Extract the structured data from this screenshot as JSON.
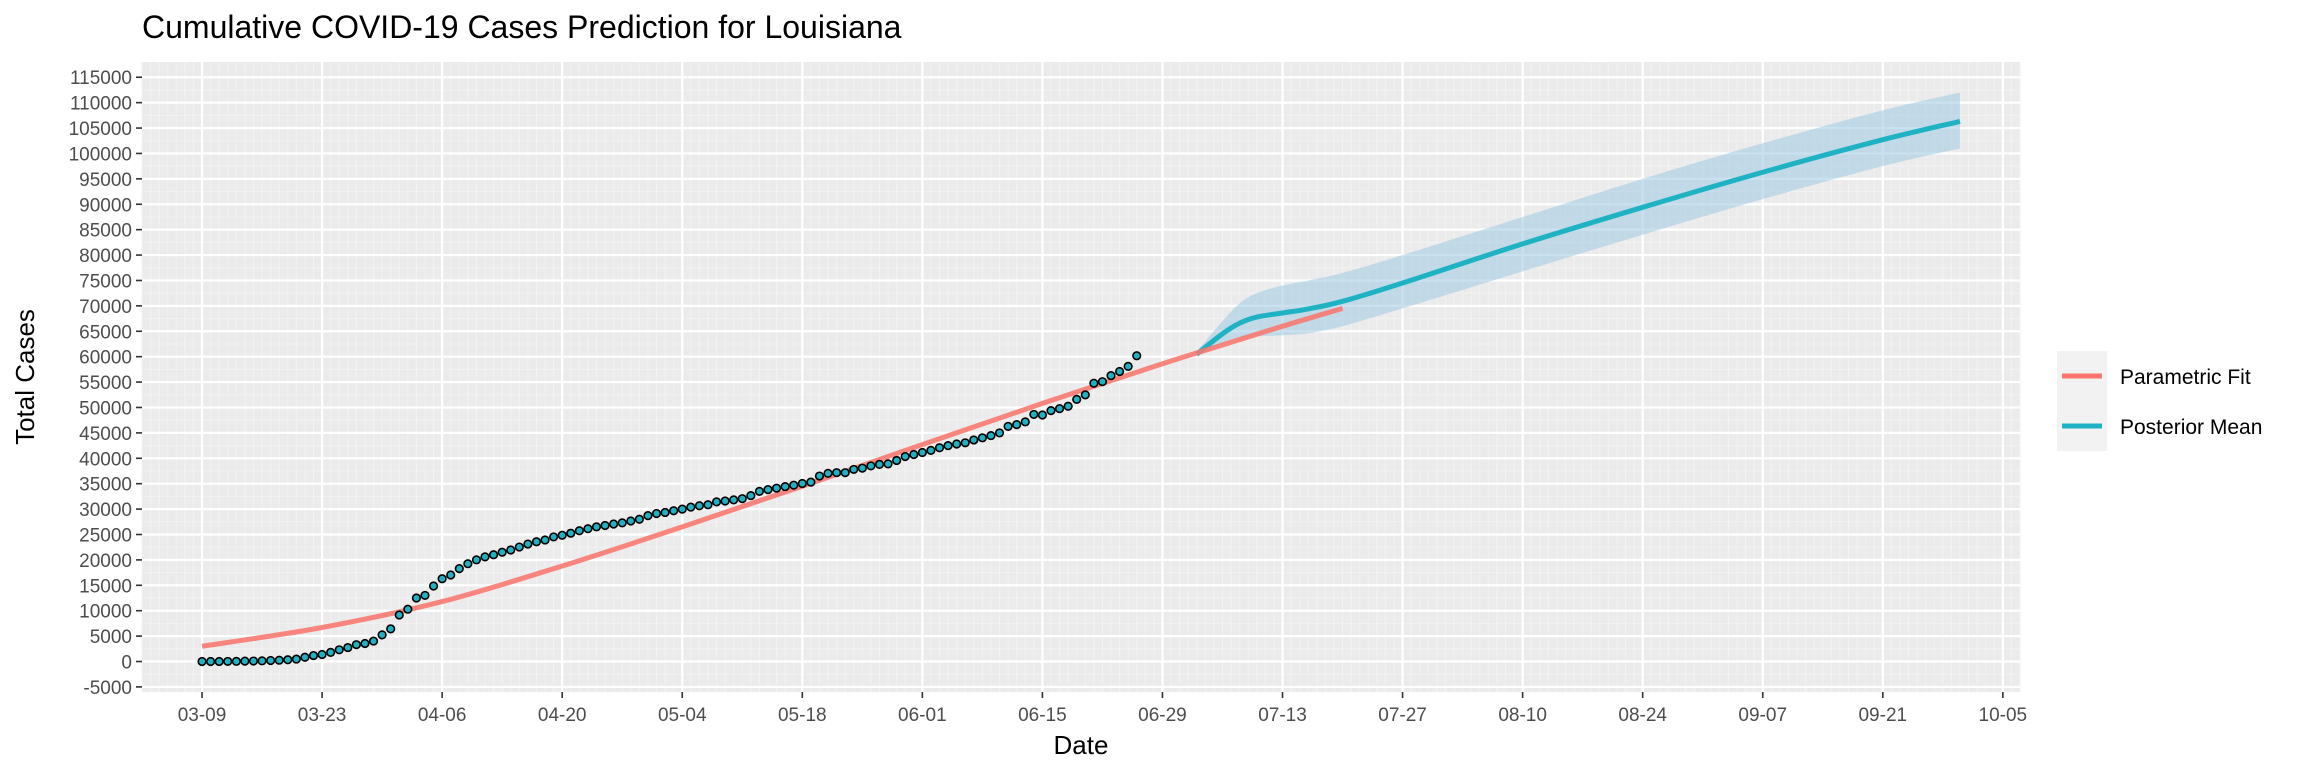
{
  "chart_data": {
    "type": "line",
    "title": "Cumulative COVID-19 Cases Prediction for Louisiana",
    "xlabel": "Date",
    "ylabel": "Total Cases",
    "x_axis": {
      "type": "date",
      "year": 2020,
      "range": [
        "2020-03-02",
        "2020-10-07"
      ],
      "tick_dates": [
        "2020-03-09",
        "2020-03-23",
        "2020-04-06",
        "2020-04-20",
        "2020-05-04",
        "2020-05-18",
        "2020-06-01",
        "2020-06-15",
        "2020-06-29",
        "2020-07-13",
        "2020-07-27",
        "2020-08-10",
        "2020-08-24",
        "2020-09-07",
        "2020-09-21",
        "2020-10-05"
      ],
      "tick_labels": [
        "03-09",
        "03-23",
        "04-06",
        "04-20",
        "05-04",
        "05-18",
        "06-01",
        "06-15",
        "06-29",
        "07-13",
        "07-27",
        "08-10",
        "08-24",
        "09-07",
        "09-21",
        "10-05"
      ]
    },
    "y_axis": {
      "range": [
        -6000,
        118000
      ],
      "tick_values": [
        -5000,
        0,
        5000,
        10000,
        15000,
        20000,
        25000,
        30000,
        35000,
        40000,
        45000,
        50000,
        55000,
        60000,
        65000,
        70000,
        75000,
        80000,
        85000,
        90000,
        95000,
        100000,
        105000,
        110000,
        115000
      ],
      "tick_labels": [
        "-5000",
        "0",
        "5000",
        "10000",
        "15000",
        "20000",
        "25000",
        "30000",
        "35000",
        "40000",
        "45000",
        "50000",
        "55000",
        "60000",
        "65000",
        "70000",
        "75000",
        "80000",
        "85000",
        "90000",
        "95000",
        "100000",
        "105000",
        "110000",
        "115000"
      ]
    },
    "grid": true,
    "legend_position": "right",
    "series": [
      {
        "name": "Parametric Fit",
        "color": "#F8766D",
        "style": "line",
        "x": [
          "2020-03-09",
          "2020-03-23",
          "2020-04-06",
          "2020-04-20",
          "2020-05-04",
          "2020-05-18",
          "2020-06-01",
          "2020-06-15",
          "2020-06-29",
          "2020-07-06",
          "2020-07-13",
          "2020-07-20"
        ],
        "y": [
          3000,
          6700,
          11800,
          18800,
          26500,
          34500,
          42700,
          50800,
          58600,
          62300,
          66000,
          69500
        ]
      },
      {
        "name": "Posterior Mean",
        "color": "#1FB2C3",
        "style": "line",
        "x": [
          "2020-07-03",
          "2020-07-06",
          "2020-07-08",
          "2020-07-10",
          "2020-07-13",
          "2020-07-16",
          "2020-07-20",
          "2020-07-27",
          "2020-08-10",
          "2020-08-24",
          "2020-09-07",
          "2020-09-21",
          "2020-09-30"
        ],
        "y": [
          60500,
          64500,
          66600,
          67800,
          68600,
          69400,
          70900,
          74500,
          82200,
          89400,
          96300,
          102700,
          106300
        ]
      },
      {
        "name": "Posterior Band",
        "color": "#9ECAE1",
        "style": "ribbon",
        "x": [
          "2020-07-03",
          "2020-07-06",
          "2020-07-08",
          "2020-07-10",
          "2020-07-13",
          "2020-07-16",
          "2020-07-20",
          "2020-07-27",
          "2020-08-10",
          "2020-08-24",
          "2020-09-07",
          "2020-09-21",
          "2020-09-30"
        ],
        "upper": [
          61000,
          67000,
          70500,
          72500,
          74000,
          75000,
          76500,
          80000,
          87500,
          95000,
          102000,
          108500,
          112000
        ],
        "lower": [
          60000,
          62500,
          63500,
          64000,
          64200,
          64600,
          66000,
          69500,
          76800,
          84000,
          91000,
          97500,
          101000
        ]
      },
      {
        "name": "Observed",
        "color": "#1FB2C3",
        "style": "points",
        "start_date": "2020-03-09",
        "y": [
          1,
          6,
          13,
          19,
          36,
          77,
          91,
          136,
          196,
          257,
          347,
          479,
          837,
          1172,
          1388,
          1795,
          2305,
          2746,
          3315,
          3540,
          4025,
          5237,
          6424,
          9150,
          10297,
          12496,
          13010,
          14867,
          16284,
          17030,
          18283,
          19253,
          20014,
          20595,
          21016,
          21518,
          21951,
          22532,
          23118,
          23580,
          23928,
          24523,
          24854,
          25258,
          25739,
          26140,
          26512,
          26773,
          27068,
          27286,
          27660,
          28001,
          28711,
          29140,
          29340,
          29673,
          29996,
          30399,
          30652,
          30855,
          31417,
          31600,
          31815,
          32050,
          32662,
          33489,
          33837,
          34117,
          34432,
          34709,
          35038,
          35316,
          36504,
          37040,
          37169,
          37169,
          37809,
          38054,
          38497,
          38802,
          38907,
          39577,
          40341,
          40746,
          41133,
          41562,
          42068,
          42486,
          42816,
          43050,
          43612,
          44030,
          44472,
          44995,
          46283,
          46619,
          47172,
          48634,
          48515,
          49385,
          49778,
          50239,
          51595,
          52477,
          54769,
          55081,
          56269,
          57081,
          58095,
          60178
        ]
      }
    ]
  },
  "colors": {
    "panel_background": "#EBEBEB",
    "grid_major": "#FFFFFF",
    "grid_minor": "#F2F2F2",
    "legend_key_background": "#F2F2F2",
    "point_outline": "#000000"
  },
  "legend": {
    "items": [
      {
        "label": "Parametric Fit",
        "color": "#F8766D"
      },
      {
        "label": "Posterior Mean",
        "color": "#1FB2C3"
      }
    ]
  }
}
